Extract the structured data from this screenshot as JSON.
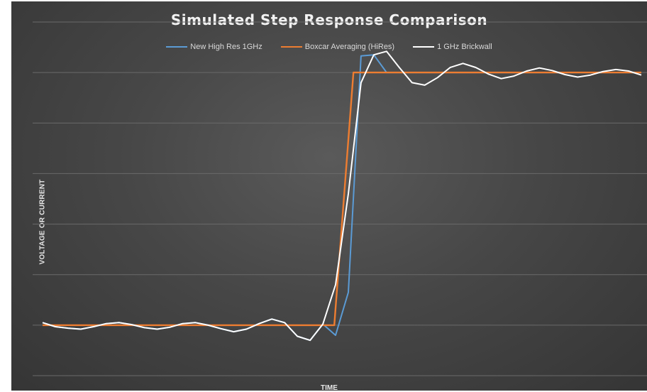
{
  "chart_data": {
    "type": "line",
    "title": "Simulated Step Response Comparison",
    "xlabel": "TIME",
    "ylabel": "VOLTAGE OR CURRENT",
    "ylim": [
      0,
      7
    ],
    "xlim": [
      0,
      47
    ],
    "grid": "horizontal",
    "legend": "top-center",
    "series": [
      {
        "name": "New High Res 1GHz",
        "color": "#5b9bd5",
        "x": [
          0,
          1,
          2,
          3,
          4,
          5,
          6,
          7,
          8,
          9,
          10,
          11,
          12,
          13,
          14,
          15,
          16,
          17,
          18,
          19,
          20,
          21,
          22,
          23,
          24,
          25,
          26,
          27,
          28,
          29,
          30,
          31,
          32,
          33,
          34,
          35,
          36,
          37,
          38,
          39,
          40,
          41,
          42,
          43,
          44,
          45,
          46,
          47
        ],
        "y": [
          1.05,
          0.97,
          0.94,
          0.92,
          0.97,
          1.03,
          1.05,
          1.01,
          0.95,
          0.92,
          0.96,
          1.03,
          1.05,
          1.0,
          0.93,
          0.87,
          0.92,
          1.03,
          1.12,
          1.05,
          0.78,
          0.7,
          1.02,
          0.8,
          1.65,
          6.33,
          6.35,
          6.0,
          6.0,
          6.0,
          6.0,
          6.0,
          6.0,
          6.0,
          6.0,
          6.0,
          6.0,
          6.0,
          6.0,
          6.0,
          6.0,
          6.0,
          6.0,
          6.0,
          6.0,
          6.0,
          6.0,
          6.0
        ]
      },
      {
        "name": "Boxcar Averaging (HiRes)",
        "color": "#ed7d31",
        "x": [
          0,
          22.2,
          22.9,
          24.4,
          47
        ],
        "y": [
          1.0,
          1.0,
          1.0,
          6.0,
          6.0
        ]
      },
      {
        "name": "1 GHz Brickwall",
        "color": "#ffffff",
        "x": [
          0,
          1,
          2,
          3,
          4,
          5,
          6,
          7,
          8,
          9,
          10,
          11,
          12,
          13,
          14,
          15,
          16,
          17,
          18,
          19,
          20,
          21,
          22,
          23,
          24,
          25,
          26,
          27,
          28,
          29,
          30,
          31,
          32,
          33,
          34,
          35,
          36,
          37,
          38,
          39,
          40,
          41,
          42,
          43,
          44,
          45,
          46,
          47
        ],
        "y": [
          1.05,
          0.97,
          0.94,
          0.92,
          0.97,
          1.03,
          1.05,
          1.01,
          0.95,
          0.92,
          0.96,
          1.03,
          1.05,
          1.0,
          0.93,
          0.87,
          0.92,
          1.03,
          1.12,
          1.05,
          0.78,
          0.7,
          1.02,
          1.8,
          3.6,
          5.8,
          6.35,
          6.42,
          6.1,
          5.8,
          5.75,
          5.9,
          6.1,
          6.18,
          6.1,
          5.97,
          5.88,
          5.93,
          6.03,
          6.09,
          6.04,
          5.96,
          5.91,
          5.95,
          6.02,
          6.06,
          6.03,
          5.95
        ]
      }
    ]
  }
}
